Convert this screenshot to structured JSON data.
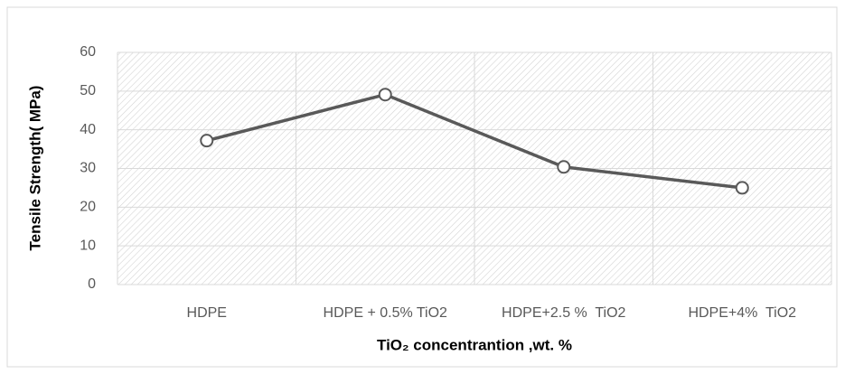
{
  "chart_data": {
    "type": "line",
    "x_label": "TiO₂ concentrantion ,wt. %",
    "y_label": "Tensile Strength( MPa)",
    "categories": [
      "HDPE",
      "HDPE + 0.5% TiO2",
      "HDPE+2.5 %  TiO2",
      "HDPE+4%  TiO2"
    ],
    "series": [
      {
        "name": "Tensile Strength",
        "color": "#595959",
        "values": [
          37.2,
          49.1,
          30.4,
          25.0
        ]
      }
    ],
    "ylim": [
      0,
      60
    ],
    "yticks": [
      0,
      10,
      20,
      30,
      40,
      50,
      60
    ],
    "grid": true
  }
}
